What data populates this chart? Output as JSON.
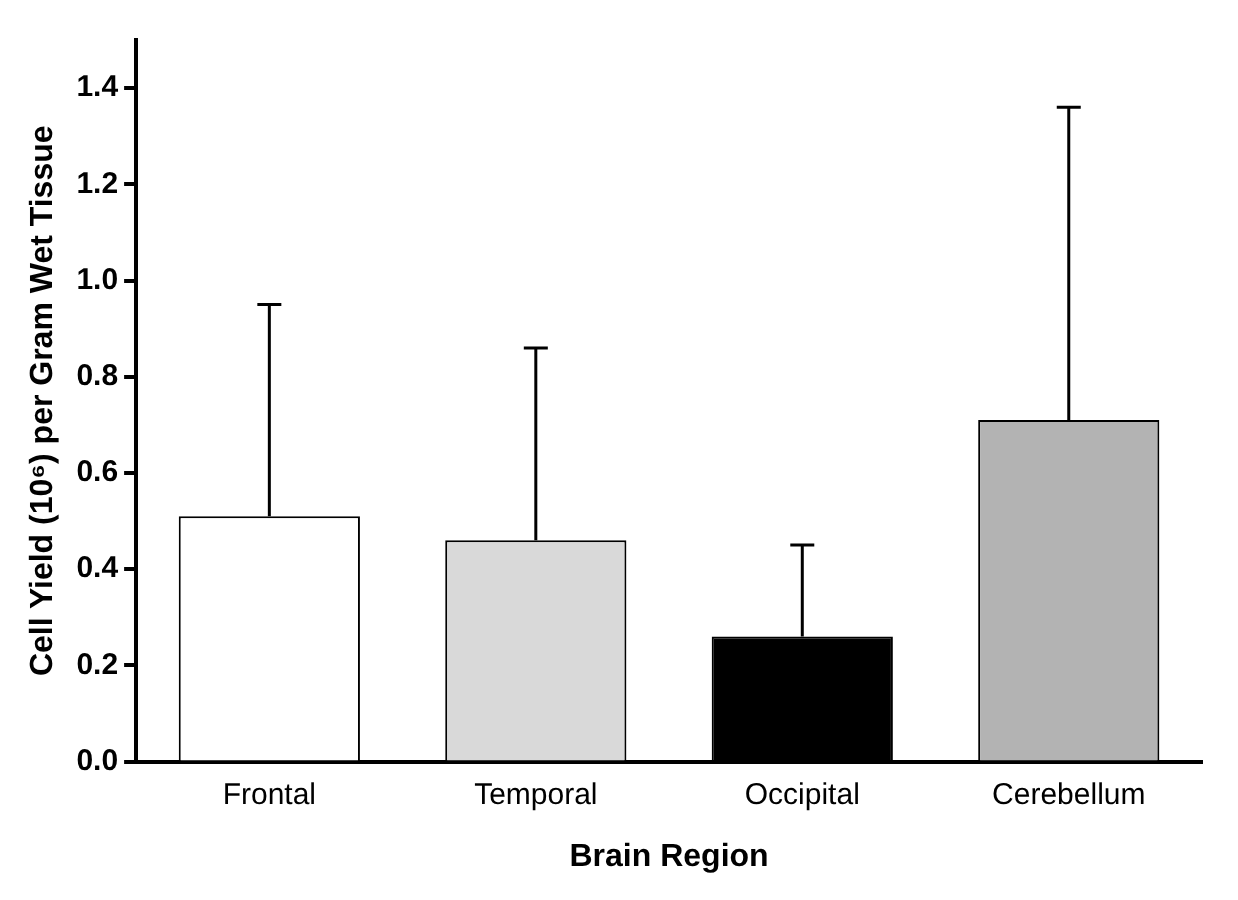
{
  "chart_data": {
    "type": "bar",
    "xlabel": "Brain Region",
    "ylabel": "Cell Yield (10⁶) per Gram Wet Tissue",
    "categories": [
      "Frontal",
      "Temporal",
      "Occipital",
      "Cerebellum"
    ],
    "values": [
      0.51,
      0.46,
      0.26,
      0.71
    ],
    "colors": [
      "#ffffff",
      "#d9d9d9",
      "#000000",
      "#b3b3b3"
    ],
    "errors": [
      [
        0.51,
        0.95
      ],
      [
        0.46,
        0.86
      ],
      [
        0.26,
        0.45
      ],
      [
        0.71,
        1.36
      ]
    ],
    "ylim": [
      0,
      1.5
    ],
    "yticks": [
      {
        "value": 0,
        "label": "0.0"
      },
      0.2,
      0.4,
      0.6,
      0.8,
      {
        "value": 1,
        "label": "1.0"
      },
      1.2,
      1.4
    ],
    "grid": false,
    "legend": false
  }
}
